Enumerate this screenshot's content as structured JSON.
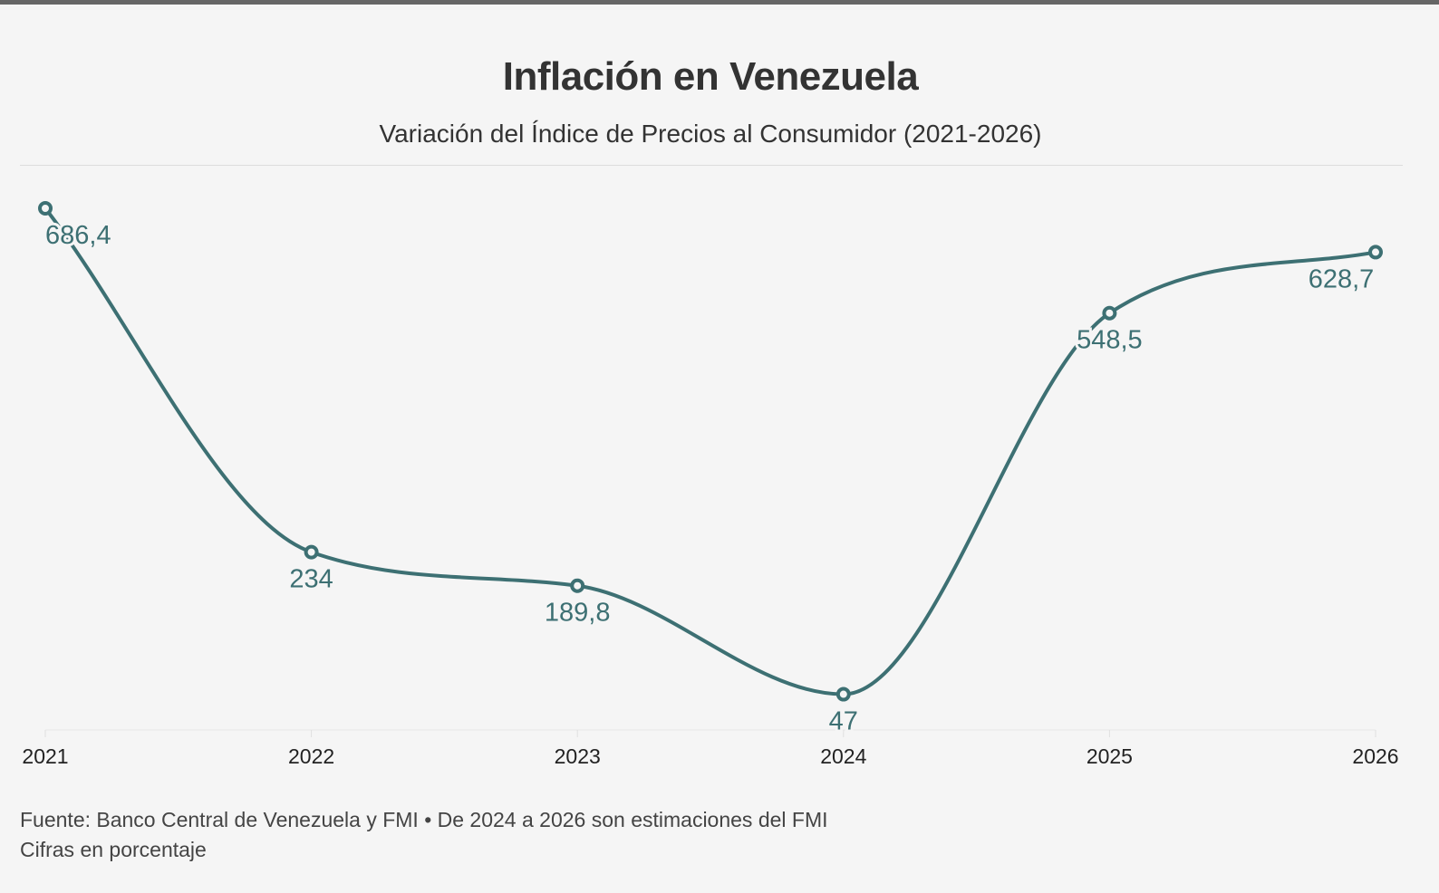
{
  "chart_data": {
    "type": "line",
    "title": "Inflación en Venezuela",
    "subtitle": "Variación del Índice de Precios al Consumidor (2021-2026)",
    "categories": [
      "2021",
      "2022",
      "2023",
      "2024",
      "2025",
      "2026"
    ],
    "values": [
      686.4,
      234,
      189.8,
      47,
      548.5,
      628.7
    ],
    "data_labels": [
      "686,4",
      "234",
      "189,8",
      "47",
      "548,5",
      "628,7"
    ],
    "ylim": [
      0,
      686.4
    ],
    "grid": false,
    "line_color": "#3d7073",
    "footnote": "Fuente: Banco Central de Venezuela y FMI • De 2024 a 2026 son estimaciones del FMI",
    "unit_note": "Cifras en porcentaje"
  }
}
